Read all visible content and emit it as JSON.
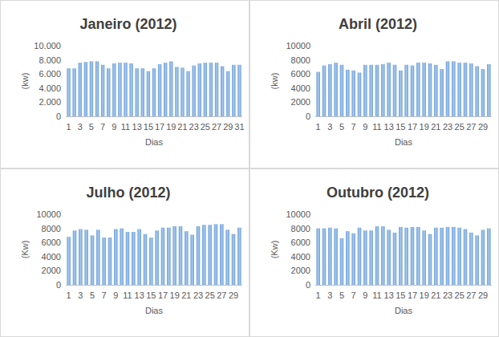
{
  "chart_data": [
    {
      "type": "bar",
      "title": "Janeiro (2012)",
      "x_label": "Dias",
      "y_label": "(kw)",
      "categories": [
        "1",
        null,
        "3",
        null,
        "5",
        null,
        "7",
        null,
        "9",
        null,
        "11",
        null,
        "13",
        null,
        "15",
        null,
        "17",
        null,
        "19",
        null,
        "21",
        null,
        "23",
        null,
        "25",
        null,
        "27",
        null,
        "29",
        null,
        "31"
      ],
      "values": [
        6800,
        6800,
        7600,
        7700,
        7800,
        7800,
        7300,
        6800,
        7500,
        7600,
        7600,
        7500,
        6800,
        6800,
        6400,
        6800,
        7400,
        7600,
        7800,
        7000,
        6900,
        6400,
        7200,
        7500,
        7600,
        7600,
        7600,
        7100,
        6400,
        7300,
        7300
      ],
      "color": "#6a9fd8",
      "ylim": [
        0,
        10000
      ],
      "yticks": [
        0,
        {
          "value": 2000,
          "label": "2.000"
        },
        {
          "value": 4000,
          "label": "4.000"
        },
        {
          "value": 6000,
          "label": "6.000"
        },
        {
          "value": 8000,
          "label": "8.000"
        },
        {
          "value": 10000,
          "label": "10.000"
        }
      ],
      "grid": false
    },
    {
      "type": "bar",
      "title": "Abril (2012)",
      "x_label": "Dias",
      "y_label": "(kw)",
      "categories": [
        "1",
        null,
        "3",
        null,
        "5",
        null,
        "7",
        null,
        "9",
        null,
        "11",
        null,
        "13",
        null,
        "15",
        null,
        "17",
        null,
        "19",
        null,
        "21",
        null,
        "23",
        null,
        "25",
        null,
        "27",
        null,
        "29",
        null
      ],
      "values": [
        6300,
        7200,
        7400,
        7600,
        7300,
        6600,
        6500,
        6200,
        7300,
        7300,
        7300,
        7400,
        7600,
        7300,
        6500,
        7300,
        7200,
        7600,
        7600,
        7500,
        7300,
        6700,
        7800,
        7800,
        7600,
        7600,
        7500,
        7100,
        6700,
        7400
      ],
      "color": "#6a9fd8",
      "ylim": [
        0,
        10000
      ],
      "yticks": [
        0,
        2000,
        4000,
        6000,
        8000,
        10000
      ],
      "grid": false
    },
    {
      "type": "bar",
      "title": "Julho (2012)",
      "x_label": "Dias",
      "y_label": "(Kw)",
      "categories": [
        "1",
        null,
        "3",
        null,
        "5",
        null,
        "7",
        null,
        "9",
        null,
        "11",
        null,
        "13",
        null,
        "15",
        null,
        "17",
        null,
        "19",
        null,
        "21",
        null,
        "23",
        null,
        "25",
        null,
        "27",
        null,
        "29",
        null
      ],
      "values": [
        6800,
        7700,
        7900,
        7800,
        7000,
        7800,
        6700,
        6700,
        7900,
        8000,
        7500,
        7500,
        7900,
        7200,
        6700,
        7700,
        8100,
        8100,
        8300,
        8300,
        7600,
        7100,
        8300,
        8500,
        8500,
        8600,
        8600,
        7800,
        7200,
        8100
      ],
      "color": "#6a9fd8",
      "ylim": [
        0,
        10000
      ],
      "yticks": [
        0,
        2000,
        4000,
        6000,
        8000,
        10000
      ],
      "grid": false
    },
    {
      "type": "bar",
      "title": "Outubro (2012)",
      "x_label": "Dias",
      "y_label": "(Kw)",
      "categories": [
        "1",
        null,
        "3",
        null,
        "5",
        null,
        "7",
        null,
        "9",
        null,
        "11",
        null,
        "13",
        null,
        "15",
        null,
        "17",
        null,
        "19",
        null,
        "21",
        null,
        "23",
        null,
        "25",
        null,
        "27",
        null,
        "29",
        null
      ],
      "values": [
        8000,
        8000,
        8100,
        8000,
        6600,
        7600,
        7300,
        8100,
        7700,
        7700,
        8300,
        8300,
        7800,
        7400,
        8200,
        8100,
        8200,
        8200,
        7700,
        7200,
        8100,
        8100,
        8200,
        8200,
        8100,
        7900,
        7400,
        7000,
        7800,
        8000
      ],
      "color": "#6a9fd8",
      "ylim": [
        0,
        10000
      ],
      "yticks": [
        0,
        2000,
        4000,
        6000,
        8000,
        10000
      ],
      "grid": false
    }
  ]
}
